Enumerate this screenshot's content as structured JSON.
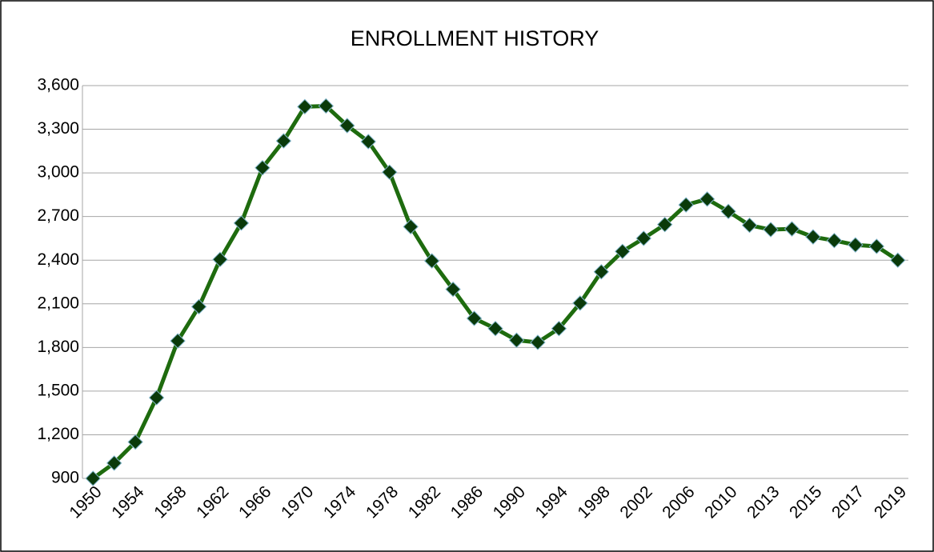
{
  "chart_data": {
    "type": "line",
    "title": "ENROLLMENT HISTORY",
    "categories": [
      "1950",
      null,
      "1954",
      null,
      "1958",
      null,
      "1962",
      null,
      "1966",
      null,
      "1970",
      null,
      "1974",
      null,
      "1978",
      null,
      "1982",
      null,
      "1986",
      null,
      "1990",
      null,
      "1994",
      null,
      "1998",
      null,
      "2002",
      null,
      "2006",
      null,
      "2010",
      null,
      "2013",
      null,
      "2015",
      null,
      "2017",
      null,
      "2019"
    ],
    "series": [
      {
        "color": "#1e6b0e",
        "marker_color": "#0a3a0a",
        "values": [
          900,
          1005,
          1150,
          1455,
          1845,
          2080,
          2405,
          2655,
          3035,
          3220,
          3455,
          3460,
          3325,
          3215,
          3005,
          2630,
          2395,
          2200,
          2000,
          1930,
          1850,
          1835,
          1930,
          2105,
          2320,
          2460,
          2550,
          2645,
          2780,
          2820,
          2735,
          2640,
          2610,
          2615,
          2560,
          2535,
          2505,
          2495,
          2400
        ]
      }
    ],
    "ylim": [
      900,
      3600
    ],
    "yticks": [
      900,
      {
        "value": 1200,
        "label": "1,200"
      },
      {
        "value": 1500,
        "label": "1,500"
      },
      {
        "value": 1800,
        "label": "1,800"
      },
      {
        "value": 2100,
        "label": "2,100"
      },
      {
        "value": 2400,
        "label": "2,400"
      },
      {
        "value": 2700,
        "label": "2,700"
      },
      {
        "value": 3000,
        "label": "3,000"
      },
      {
        "value": 3300,
        "label": "3,300"
      },
      {
        "value": 3600,
        "label": "3,600"
      }
    ],
    "grid": true
  }
}
